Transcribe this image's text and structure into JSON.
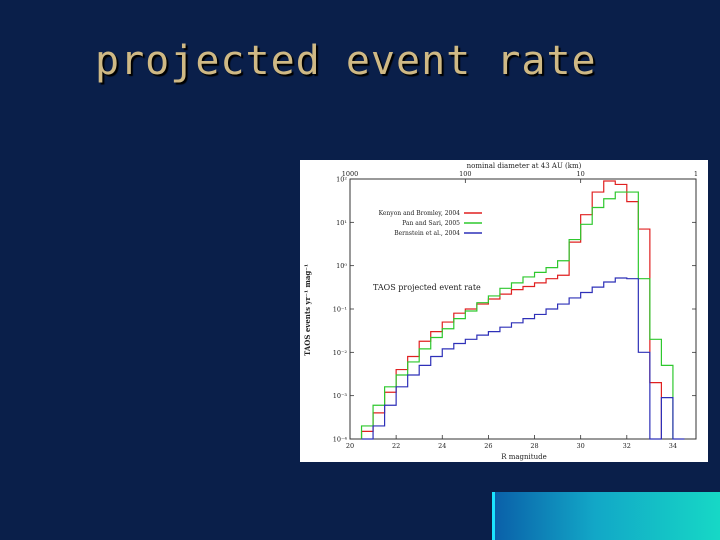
{
  "slide": {
    "title": "projected event rate"
  },
  "chart_data": {
    "type": "line",
    "step": true,
    "title": "",
    "xlabel": "R magnitude",
    "ylabel": "TAOS events yr⁻¹ mag⁻¹",
    "top_axis_label": "nominal diameter at 43 AU (km)",
    "top_tick_labels": [
      "1000",
      "100",
      "10",
      "1"
    ],
    "xlim": [
      20,
      35
    ],
    "x_tick_labels": [
      "20",
      "22",
      "24",
      "26",
      "28",
      "30",
      "32",
      "34"
    ],
    "ylog": true,
    "ylim": [
      0.0001,
      100
    ],
    "y_tick_labels": [
      "10²",
      "10¹",
      "10⁰",
      "10⁻¹",
      "10⁻²",
      "10⁻³",
      "10⁻⁴"
    ],
    "annotation": "TAOS projected event rate",
    "legend": "top-left",
    "x_edges": [
      20.5,
      21,
      21.5,
      22,
      22.5,
      23,
      23.5,
      24,
      24.5,
      25,
      25.5,
      26,
      26.5,
      27,
      27.5,
      28,
      28.5,
      29,
      29.5,
      30,
      30.5,
      31,
      31.5,
      32,
      32.5,
      33,
      33.5,
      34,
      34.5
    ],
    "series": [
      {
        "name": "Kenyon and Bromley, 2004",
        "color": "#e02020",
        "values": [
          0.00015,
          0.0004,
          0.0012,
          0.004,
          0.008,
          0.018,
          0.03,
          0.05,
          0.08,
          0.1,
          0.13,
          0.17,
          0.22,
          0.28,
          0.33,
          0.4,
          0.5,
          0.6,
          3.5,
          15,
          50,
          90,
          75,
          30,
          7.0,
          0.002,
          null,
          null
        ]
      },
      {
        "name": "Pan and Sari, 2005",
        "color": "#2ec82e",
        "values": [
          0.0002,
          0.0006,
          0.0016,
          0.003,
          0.006,
          0.012,
          0.022,
          0.035,
          0.06,
          0.09,
          0.14,
          0.2,
          0.3,
          0.4,
          0.55,
          0.7,
          0.9,
          1.3,
          4.0,
          9.0,
          22,
          35,
          50,
          50,
          0.5,
          0.02,
          0.005,
          null
        ]
      },
      {
        "name": "Bernstein et al., 2004",
        "color": "#2e30b8",
        "values": [
          0.0001,
          0.0002,
          0.0006,
          0.0016,
          0.003,
          0.005,
          0.008,
          0.012,
          0.016,
          0.02,
          0.025,
          0.03,
          0.038,
          0.048,
          0.06,
          0.075,
          0.1,
          0.13,
          0.18,
          0.24,
          0.32,
          0.42,
          0.52,
          0.5,
          0.01,
          0.0001,
          0.0009,
          0.0001
        ]
      }
    ]
  }
}
